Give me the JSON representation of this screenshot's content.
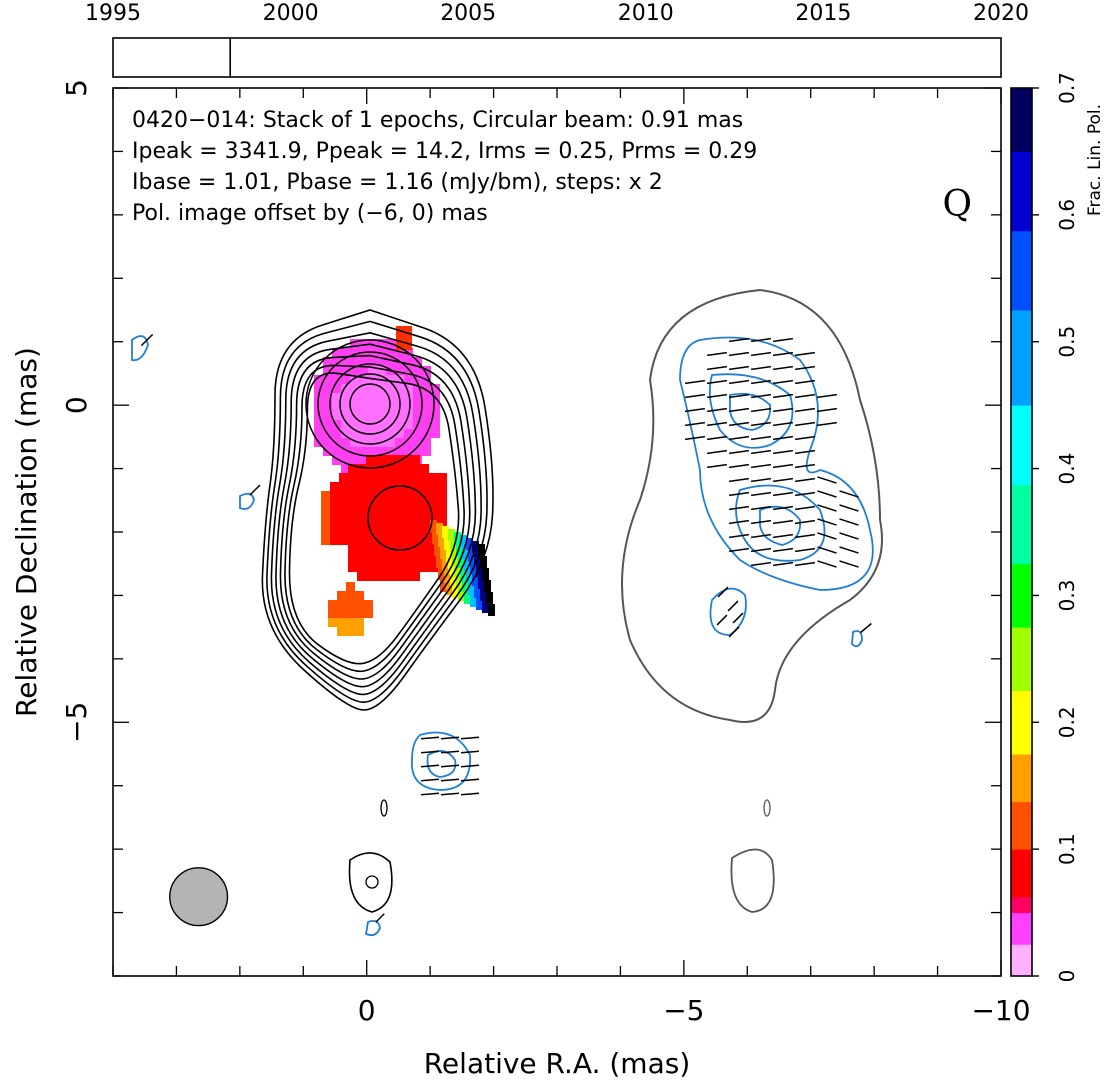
{
  "chart_data": {
    "type": "contour-map",
    "source_name": "0420−014",
    "annotations": {
      "line1": "0420−014: Stack of 1 epochs, Circular beam: 0.91 mas",
      "line2": "Ipeak = 3341.9, Ppeak = 14.2, Irms = 0.25, Prms = 0.29",
      "line3": "Ibase = 1.01, Pbase = 1.16 (mJy/bm), steps: x 2",
      "offset_note": "Pol. image offset by (−6, 0) mas",
      "band": "Q"
    },
    "xlabel": "Relative R.A. (mas)",
    "ylabel": "Relative Declination (mas)",
    "xlim": [
      4,
      -10
    ],
    "ylim": [
      -9,
      5
    ],
    "xticks": [
      0,
      -5,
      -10
    ],
    "xtick_labels": [
      "0",
      "−5",
      "−10"
    ],
    "yticks": [
      5,
      0,
      -5
    ],
    "ytick_labels": [
      "5",
      "0",
      "−5"
    ],
    "timeline": {
      "range": [
        1995,
        2020
      ],
      "tick_labels": [
        "1995",
        "2000",
        "2005",
        "2010",
        "2015",
        "2020"
      ],
      "epochs": [
        1998.3
      ]
    },
    "colorbar": {
      "label": "Frac. Lin. Pol.",
      "range": [
        0,
        0.7
      ],
      "ticks": [
        0,
        0.1,
        0.2,
        0.3,
        0.4,
        0.5,
        0.6,
        0.7
      ],
      "tick_labels": [
        "0",
        "0.1",
        "0.2",
        "0.3",
        "0.4",
        "0.5",
        "0.6",
        "0.7"
      ]
    },
    "beam": {
      "diameter_mas": 0.91,
      "x": 2.65,
      "y": -7.75
    },
    "colors": {
      "stokes_i_contours": "#000000",
      "offset_i_contour": "#555555",
      "pol_contours": "#1f7fd6",
      "evpa_ticks": "#000000",
      "beam_fill": "#b4b4b4"
    },
    "grid": false
  }
}
